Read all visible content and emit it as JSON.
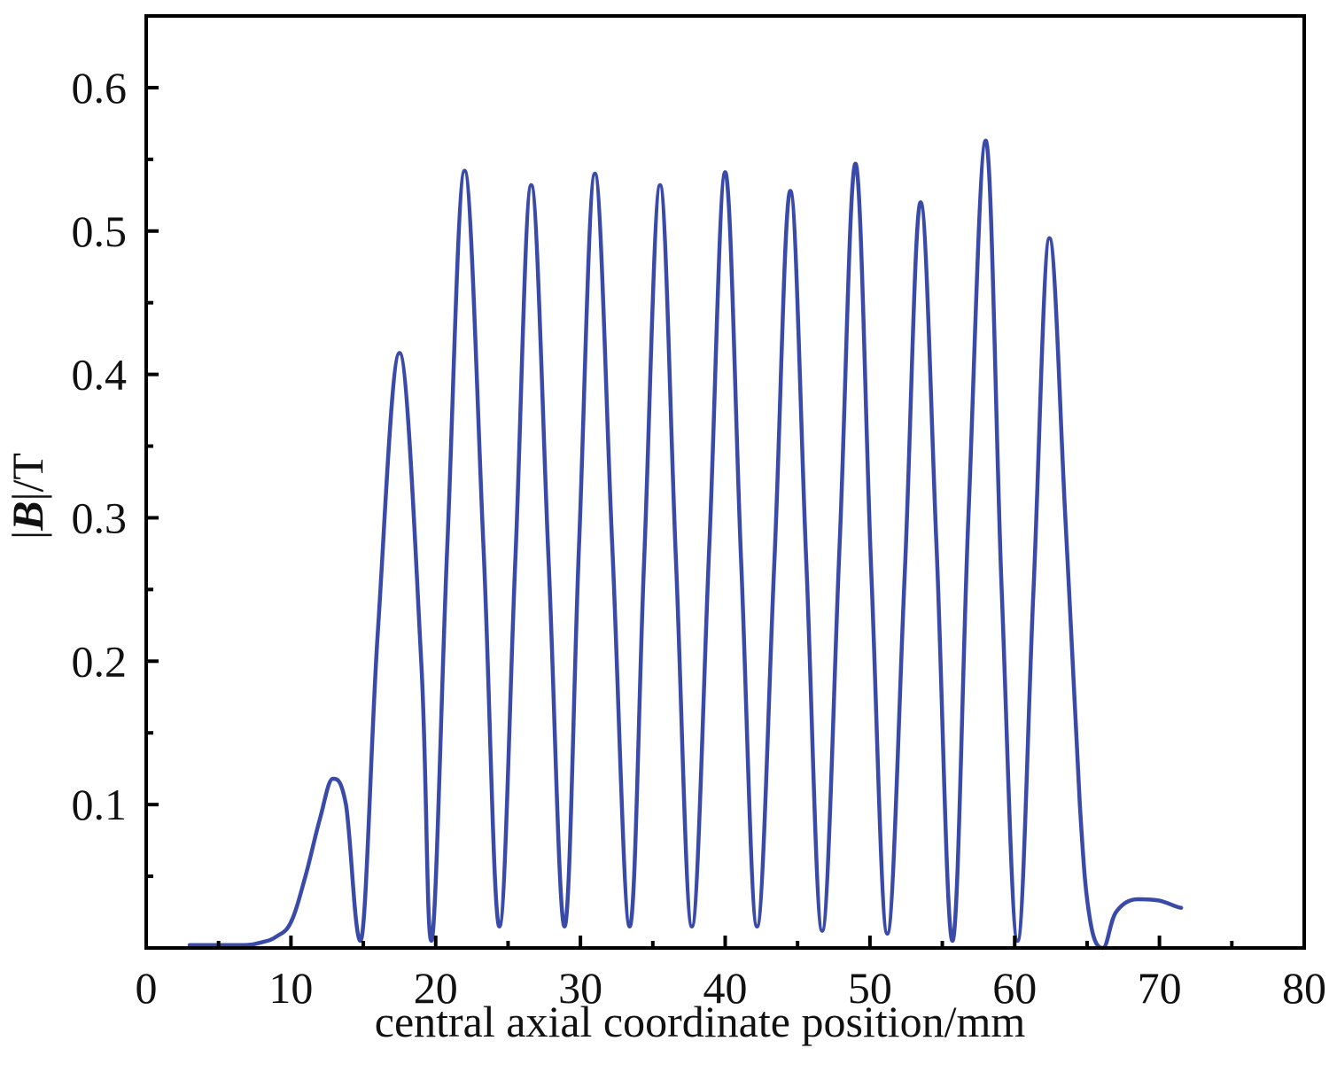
{
  "chart_data": {
    "type": "line",
    "title": "",
    "xlabel": "central axial coordinate position/mm",
    "ylabel": {
      "prefix": "|",
      "symbol": "B",
      "suffix": "|/T"
    },
    "xlim": [
      0,
      80
    ],
    "ylim": [
      0,
      0.65
    ],
    "xticks": [
      0,
      10,
      20,
      30,
      40,
      50,
      60,
      70,
      80
    ],
    "xtick_labels": [
      "0",
      "10",
      "20",
      "30",
      "40",
      "50",
      "60",
      "70",
      "80"
    ],
    "yticks": [
      0.1,
      0.2,
      0.3,
      0.4,
      0.5,
      0.6
    ],
    "ytick_labels": [
      "0.1",
      "0.2",
      "0.3",
      "0.4",
      "0.5",
      "0.6"
    ],
    "grid": false,
    "legend": "none",
    "line_color": "#3a4aa8",
    "series": [
      {
        "name": "",
        "x": [
          3.0,
          6.5,
          8.0,
          9.0,
          10.0,
          11.0,
          12.0,
          12.9,
          13.8,
          14.8,
          16.0,
          17.5,
          19.0,
          19.7,
          20.8,
          22.0,
          23.3,
          24.4,
          25.5,
          26.6,
          27.8,
          28.9,
          29.9,
          31.0,
          32.2,
          33.4,
          34.4,
          35.5,
          36.6,
          37.7,
          38.9,
          40.0,
          41.1,
          42.2,
          43.4,
          44.5,
          45.6,
          46.7,
          47.9,
          49.0,
          50.1,
          51.2,
          52.4,
          53.5,
          54.6,
          55.7,
          56.8,
          58.0,
          59.1,
          60.2,
          61.3,
          62.4,
          63.5,
          64.5,
          65.2,
          66.1,
          67.0,
          68.5,
          70.0,
          71.5
        ],
        "y": [
          0.002,
          0.002,
          0.004,
          0.008,
          0.018,
          0.05,
          0.09,
          0.118,
          0.1,
          0.005,
          0.22,
          0.415,
          0.2,
          0.005,
          0.28,
          0.542,
          0.28,
          0.015,
          0.27,
          0.532,
          0.27,
          0.015,
          0.28,
          0.54,
          0.28,
          0.015,
          0.27,
          0.532,
          0.27,
          0.015,
          0.28,
          0.541,
          0.27,
          0.015,
          0.27,
          0.528,
          0.27,
          0.012,
          0.28,
          0.547,
          0.26,
          0.01,
          0.26,
          0.52,
          0.28,
          0.005,
          0.3,
          0.563,
          0.25,
          0.005,
          0.25,
          0.495,
          0.3,
          0.1,
          0.02,
          0.0,
          0.025,
          0.034,
          0.033,
          0.028
        ]
      }
    ]
  }
}
